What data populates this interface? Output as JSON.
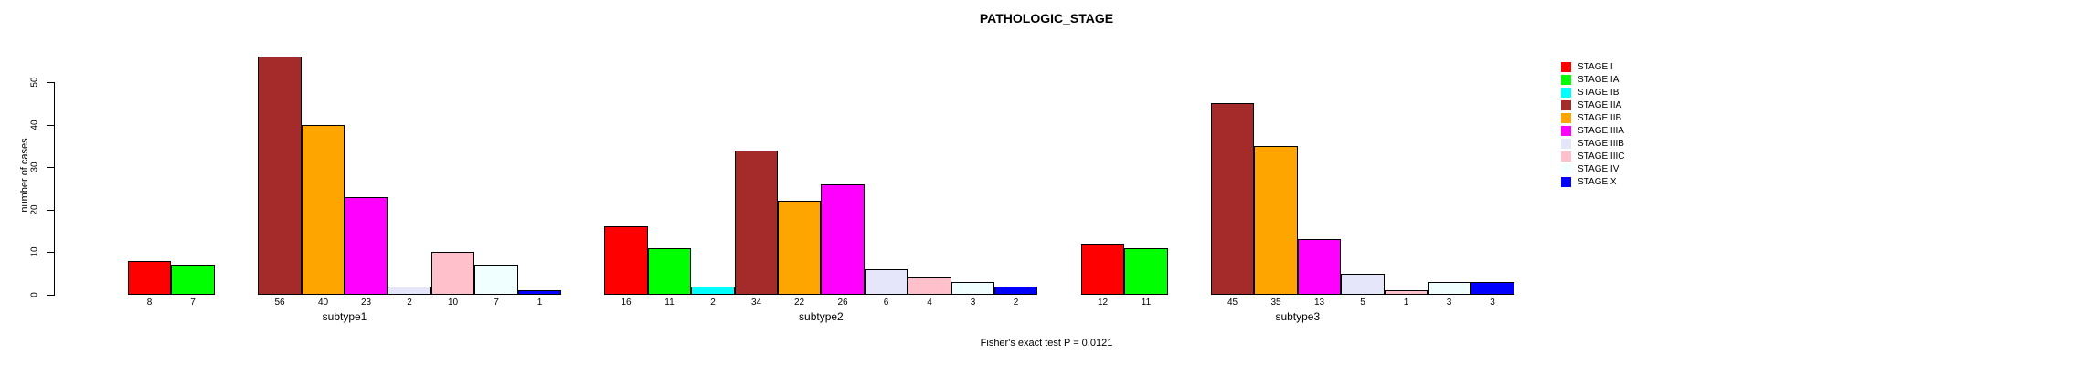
{
  "chart_data": {
    "type": "bar",
    "title": "PATHOLOGIC_STAGE",
    "ylabel": "number of cases",
    "xlabel": "",
    "categories": [
      "subtype1",
      "subtype2",
      "subtype3"
    ],
    "series": [
      {
        "name": "STAGE I",
        "color": "#FF0000",
        "values": [
          8,
          16,
          12
        ]
      },
      {
        "name": "STAGE IA",
        "color": "#00FF00",
        "values": [
          7,
          11,
          11
        ]
      },
      {
        "name": "STAGE IB",
        "color": "#00FFFF",
        "values": [
          0,
          2,
          0
        ]
      },
      {
        "name": "STAGE IIA",
        "color": "#A52A2A",
        "values": [
          56,
          34,
          45
        ]
      },
      {
        "name": "STAGE IIB",
        "color": "#FFA500",
        "values": [
          40,
          22,
          35
        ]
      },
      {
        "name": "STAGE IIIA",
        "color": "#FF00FF",
        "values": [
          23,
          26,
          13
        ]
      },
      {
        "name": "STAGE IIIB",
        "color": "#E6E6FA",
        "values": [
          2,
          6,
          5
        ]
      },
      {
        "name": "STAGE IIIC",
        "color": "#FFC0CB",
        "values": [
          10,
          4,
          1
        ]
      },
      {
        "name": "STAGE IV",
        "color": "#F0FFFF",
        "values": [
          7,
          3,
          3
        ]
      },
      {
        "name": "STAGE X",
        "color": "#0000FF",
        "values": [
          1,
          2,
          3
        ]
      }
    ],
    "y_ticks": [
      0,
      10,
      20,
      30,
      40,
      50
    ],
    "ylim": [
      0,
      57
    ],
    "grid": false,
    "legend_position": "right",
    "bar_value_labels_shown": true,
    "zero_value_bars_hidden": true,
    "annotation": "Fisher's exact test P = 0.0121"
  }
}
